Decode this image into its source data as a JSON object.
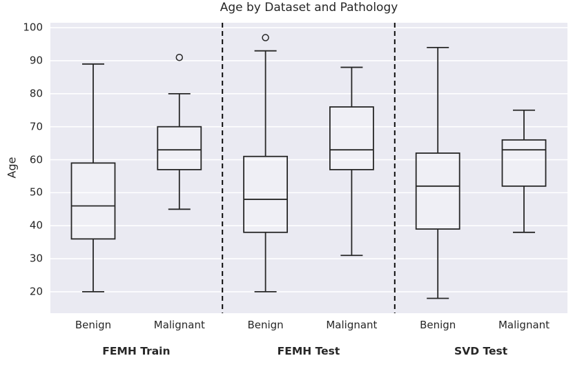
{
  "chart_data": {
    "type": "boxplot",
    "title": "Age by Dataset and Pathology",
    "ylabel": "Age",
    "xlabel": "",
    "ylim": [
      13.5,
      101.5
    ],
    "yticks": [
      20,
      30,
      40,
      50,
      60,
      70,
      80,
      90,
      100
    ],
    "grid": true,
    "legend": false,
    "separator_style": "dashed",
    "groups": [
      {
        "label": "FEMH Train",
        "boxes": [
          {
            "category": "Benign",
            "whisker_low": 20,
            "q1": 36,
            "median": 46,
            "q3": 59,
            "whisker_high": 89,
            "outliers": []
          },
          {
            "category": "Malignant",
            "whisker_low": 45,
            "q1": 57,
            "median": 63,
            "q3": 70,
            "whisker_high": 80,
            "outliers": [
              91
            ]
          }
        ]
      },
      {
        "label": "FEMH Test",
        "boxes": [
          {
            "category": "Benign",
            "whisker_low": 20,
            "q1": 38,
            "median": 48,
            "q3": 61,
            "whisker_high": 93,
            "outliers": [
              97
            ]
          },
          {
            "category": "Malignant",
            "whisker_low": 31,
            "q1": 57,
            "median": 63,
            "q3": 76,
            "whisker_high": 88,
            "outliers": []
          }
        ]
      },
      {
        "label": "SVD Test",
        "boxes": [
          {
            "category": "Benign",
            "whisker_low": 18,
            "q1": 39,
            "median": 52,
            "q3": 62,
            "whisker_high": 94,
            "outliers": []
          },
          {
            "category": "Malignant",
            "whisker_low": 38,
            "q1": 52,
            "median": 63,
            "q3": 66,
            "whisker_high": 75,
            "outliers": []
          }
        ]
      }
    ],
    "colors": {
      "figure_bg": "#ffffff",
      "plot_bg": "#eaeaf2",
      "grid": "#ffffff",
      "box_stroke": "#262626",
      "separator": "#0a0a0a",
      "text": "#262626"
    }
  }
}
